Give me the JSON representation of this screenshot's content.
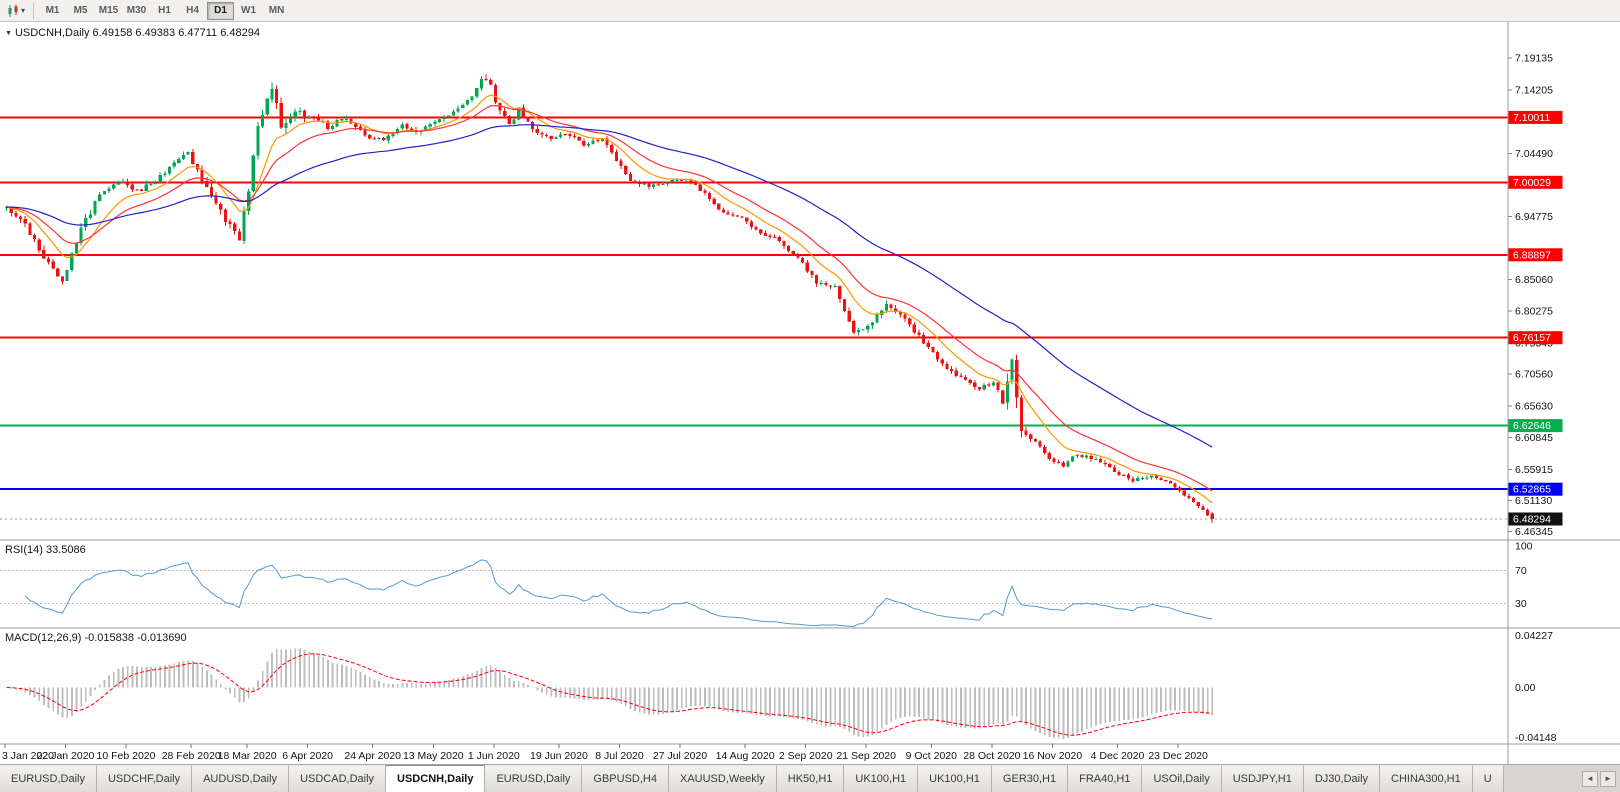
{
  "icons": {
    "caret": "▾",
    "collapse": "▼",
    "left": "◄",
    "right": "►"
  },
  "toolbar": {
    "timeframes": [
      "M1",
      "M5",
      "M15",
      "M30",
      "H1",
      "H4",
      "D1",
      "W1",
      "MN"
    ],
    "active_timeframe": "D1"
  },
  "chart": {
    "symbol": "USDCNH",
    "period": "Daily",
    "title_text": "USDCNH,Daily 6.49158 6.49383 6.47711 6.48294",
    "ohlc": {
      "open": "6.49158",
      "high": "6.49383",
      "low": "6.47711",
      "close": "6.48294"
    },
    "price_axis_labels": [
      "7.19135",
      "7.14205",
      "7.04490",
      "6.94775",
      "6.85060",
      "6.80275",
      "6.75345",
      "6.70560",
      "6.65630",
      "6.60845",
      "6.55915",
      "6.51130",
      "6.46345"
    ],
    "hlines": [
      {
        "price": 7.10011,
        "label": "7.10011",
        "color": "#ff0000"
      },
      {
        "price": 7.00029,
        "label": "7.00029",
        "color": "#ff0000"
      },
      {
        "price": 6.88897,
        "label": "6.88897",
        "color": "#ff0000"
      },
      {
        "price": 6.76157,
        "label": "6.76157",
        "color": "#ff0000"
      },
      {
        "price": 6.62646,
        "label": "6.62646",
        "color": "#00b050"
      },
      {
        "price": 6.52865,
        "label": "6.52865",
        "color": "#0000ff"
      }
    ],
    "current_price": {
      "price": 6.48294,
      "label": "6.48294",
      "color": "#111111"
    }
  },
  "indicators": {
    "rsi": {
      "label": "RSI(14) 33.5086",
      "value": 33.5086,
      "period": 14,
      "levels": [
        {
          "value": 100,
          "label": "100"
        },
        {
          "value": 70,
          "label": "70"
        },
        {
          "value": 30,
          "label": "30"
        }
      ],
      "line_color": "#4f9bd8"
    },
    "macd": {
      "label": "MACD(12,26,9) -0.015838 -0.013690",
      "main_value": -0.015838,
      "signal_value": -0.01369,
      "axis_labels": [
        {
          "value": 0.04227,
          "label": "0.04227"
        },
        {
          "value": 0,
          "label": "0.00"
        },
        {
          "value": -0.04148,
          "label": "-0.04148"
        }
      ],
      "histogram_color": "#bdbdbd",
      "signal_color": "#ff0000"
    }
  },
  "date_axis": [
    {
      "index": 0,
      "label": "3 Jan 2020"
    },
    {
      "index": 13,
      "label": "22 Jan 2020"
    },
    {
      "index": 26,
      "label": "10 Feb 2020"
    },
    {
      "index": 40,
      "label": "28 Feb 2020"
    },
    {
      "index": 52,
      "label": "18 Mar 2020"
    },
    {
      "index": 65,
      "label": "6 Apr 2020"
    },
    {
      "index": 79,
      "label": "24 Apr 2020"
    },
    {
      "index": 92,
      "label": "13 May 2020"
    },
    {
      "index": 105,
      "label": "1 Jun 2020"
    },
    {
      "index": 119,
      "label": "19 Jun 2020"
    },
    {
      "index": 132,
      "label": "8 Jul 2020"
    },
    {
      "index": 145,
      "label": "27 Jul 2020"
    },
    {
      "index": 159,
      "label": "14 Aug 2020"
    },
    {
      "index": 172,
      "label": "2 Sep 2020"
    },
    {
      "index": 185,
      "label": "21 Sep 2020"
    },
    {
      "index": 199,
      "label": "9 Oct 2020"
    },
    {
      "index": 212,
      "label": "28 Oct 2020"
    },
    {
      "index": 225,
      "label": "16 Nov 2020"
    },
    {
      "index": 239,
      "label": "4 Dec 2020"
    },
    {
      "index": 252,
      "label": "23 Dec 2020"
    }
  ],
  "tabs": {
    "items": [
      "EURUSD,Daily",
      "USDCHF,Daily",
      "AUDUSD,Daily",
      "USDCAD,Daily",
      "USDCNH,Daily",
      "EURUSD,Daily",
      "GBPUSD,H4",
      "XAUUSD,Weekly",
      "HK50,H1",
      "UK100,H1",
      "UK100,H1",
      "GER30,H1",
      "FRA40,H1",
      "USOil,Daily",
      "USDJPY,H1",
      "DJ30,Daily",
      "CHINA300,H1",
      "U"
    ],
    "active_index": 4
  },
  "chart_data": {
    "type": "candlestick",
    "symbol": "USDCNH",
    "timeframe": "Daily",
    "bars": 260,
    "price_view_range": [
      6.4506,
      7.2467
    ],
    "bull_color": "#00a651",
    "bear_color": "#ee1111",
    "last_bar_ohlc": [
      6.49158,
      6.49383,
      6.47711,
      6.48294
    ],
    "close_waypoints": [
      [
        0,
        6.962
      ],
      [
        4,
        6.935
      ],
      [
        8,
        6.888
      ],
      [
        12,
        6.845
      ],
      [
        16,
        6.928
      ],
      [
        20,
        6.982
      ],
      [
        24,
        7.004
      ],
      [
        28,
        6.986
      ],
      [
        32,
        7.004
      ],
      [
        36,
        7.028
      ],
      [
        39,
        7.046
      ],
      [
        43,
        6.99
      ],
      [
        47,
        6.944
      ],
      [
        50,
        6.916
      ],
      [
        52,
        6.985
      ],
      [
        54,
        7.09
      ],
      [
        56,
        7.13
      ],
      [
        57,
        7.152
      ],
      [
        59,
        7.088
      ],
      [
        62,
        7.114
      ],
      [
        65,
        7.098
      ],
      [
        69,
        7.086
      ],
      [
        73,
        7.1
      ],
      [
        77,
        7.072
      ],
      [
        81,
        7.064
      ],
      [
        85,
        7.088
      ],
      [
        89,
        7.078
      ],
      [
        93,
        7.098
      ],
      [
        97,
        7.114
      ],
      [
        100,
        7.128
      ],
      [
        102,
        7.162
      ],
      [
        104,
        7.146
      ],
      [
        106,
        7.108
      ],
      [
        108,
        7.088
      ],
      [
        110,
        7.112
      ],
      [
        113,
        7.082
      ],
      [
        116,
        7.068
      ],
      [
        120,
        7.076
      ],
      [
        124,
        7.058
      ],
      [
        128,
        7.066
      ],
      [
        131,
        7.034
      ],
      [
        134,
        7.004
      ],
      [
        138,
        6.994
      ],
      [
        142,
        7.0
      ],
      [
        146,
        7.006
      ],
      [
        150,
        6.984
      ],
      [
        154,
        6.952
      ],
      [
        158,
        6.944
      ],
      [
        162,
        6.924
      ],
      [
        166,
        6.91
      ],
      [
        170,
        6.884
      ],
      [
        174,
        6.846
      ],
      [
        178,
        6.838
      ],
      [
        182,
        6.772
      ],
      [
        186,
        6.782
      ],
      [
        189,
        6.816
      ],
      [
        193,
        6.79
      ],
      [
        197,
        6.756
      ],
      [
        201,
        6.722
      ],
      [
        205,
        6.7
      ],
      [
        209,
        6.682
      ],
      [
        212,
        6.694
      ],
      [
        214,
        6.662
      ],
      [
        216,
        6.728
      ],
      [
        218,
        6.622
      ],
      [
        221,
        6.6
      ],
      [
        224,
        6.578
      ],
      [
        227,
        6.566
      ],
      [
        230,
        6.582
      ],
      [
        234,
        6.574
      ],
      [
        238,
        6.556
      ],
      [
        242,
        6.542
      ],
      [
        246,
        6.548
      ],
      [
        250,
        6.538
      ],
      [
        253,
        6.52
      ],
      [
        256,
        6.502
      ],
      [
        259,
        6.483
      ]
    ],
    "volatility_waypoints": [
      [
        0,
        0.012
      ],
      [
        10,
        0.014
      ],
      [
        20,
        0.012
      ],
      [
        36,
        0.01
      ],
      [
        46,
        0.013
      ],
      [
        52,
        0.02
      ],
      [
        57,
        0.024
      ],
      [
        62,
        0.016
      ],
      [
        70,
        0.011
      ],
      [
        80,
        0.009
      ],
      [
        90,
        0.01
      ],
      [
        100,
        0.012
      ],
      [
        103,
        0.016
      ],
      [
        108,
        0.013
      ],
      [
        116,
        0.01
      ],
      [
        126,
        0.008
      ],
      [
        136,
        0.008
      ],
      [
        146,
        0.007
      ],
      [
        158,
        0.008
      ],
      [
        170,
        0.009
      ],
      [
        178,
        0.01
      ],
      [
        186,
        0.012
      ],
      [
        196,
        0.009
      ],
      [
        206,
        0.009
      ],
      [
        213,
        0.01
      ],
      [
        216,
        0.04
      ],
      [
        219,
        0.012
      ],
      [
        228,
        0.009
      ],
      [
        238,
        0.007
      ],
      [
        248,
        0.006
      ],
      [
        259,
        0.007
      ]
    ],
    "moving_averages": [
      {
        "period": 10,
        "color": "#ff9500"
      },
      {
        "period": 20,
        "color": "#ff3333"
      },
      {
        "period": 55,
        "color": "#2222cc"
      }
    ],
    "rsi_period": 14,
    "macd_params": [
      12,
      26,
      9
    ]
  }
}
